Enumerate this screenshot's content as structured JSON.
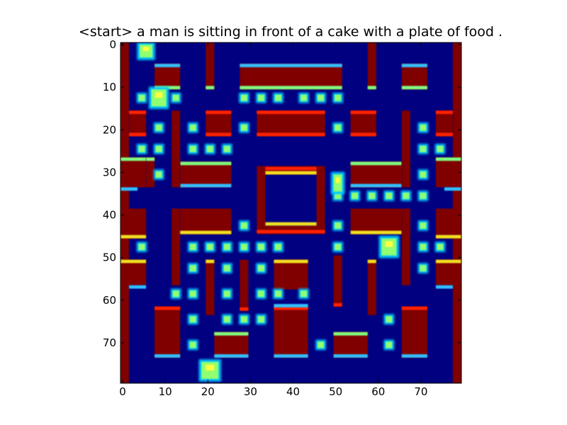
{
  "figure": {
    "title": "<start> a man is sitting in front of a cake with a plate of food ."
  },
  "heatmap": {
    "colormap": "jet",
    "grid_size": [
      80,
      80
    ],
    "x_ticks": [
      "0",
      "10",
      "20",
      "30",
      "40",
      "50",
      "60",
      "70"
    ],
    "y_ticks": [
      "0",
      "10",
      "20",
      "30",
      "40",
      "50",
      "60",
      "70"
    ],
    "x_tick_values": [
      0,
      10,
      20,
      30,
      40,
      50,
      60,
      70
    ],
    "y_tick_values": [
      0,
      10,
      20,
      30,
      40,
      50,
      60,
      70
    ],
    "xlim": [
      -0.5,
      79.5
    ],
    "ylim": [
      79.5,
      -0.5
    ],
    "colors": {
      "background": "#000080",
      "wall": "#800000",
      "wall_edge_top": "#ff2000",
      "wall_edge_cyan": "#30c0ff",
      "wall_edge_yellow": "#f0e020",
      "wall_edge_green": "#80ff80",
      "pellet": "#90ff70",
      "pellet_halo": "#00c8ff",
      "ghost_core": "#ffff40"
    },
    "game": "pacman",
    "sprites": [
      "pacman",
      "ghost",
      "ghost",
      "ghost",
      "ghost"
    ]
  }
}
